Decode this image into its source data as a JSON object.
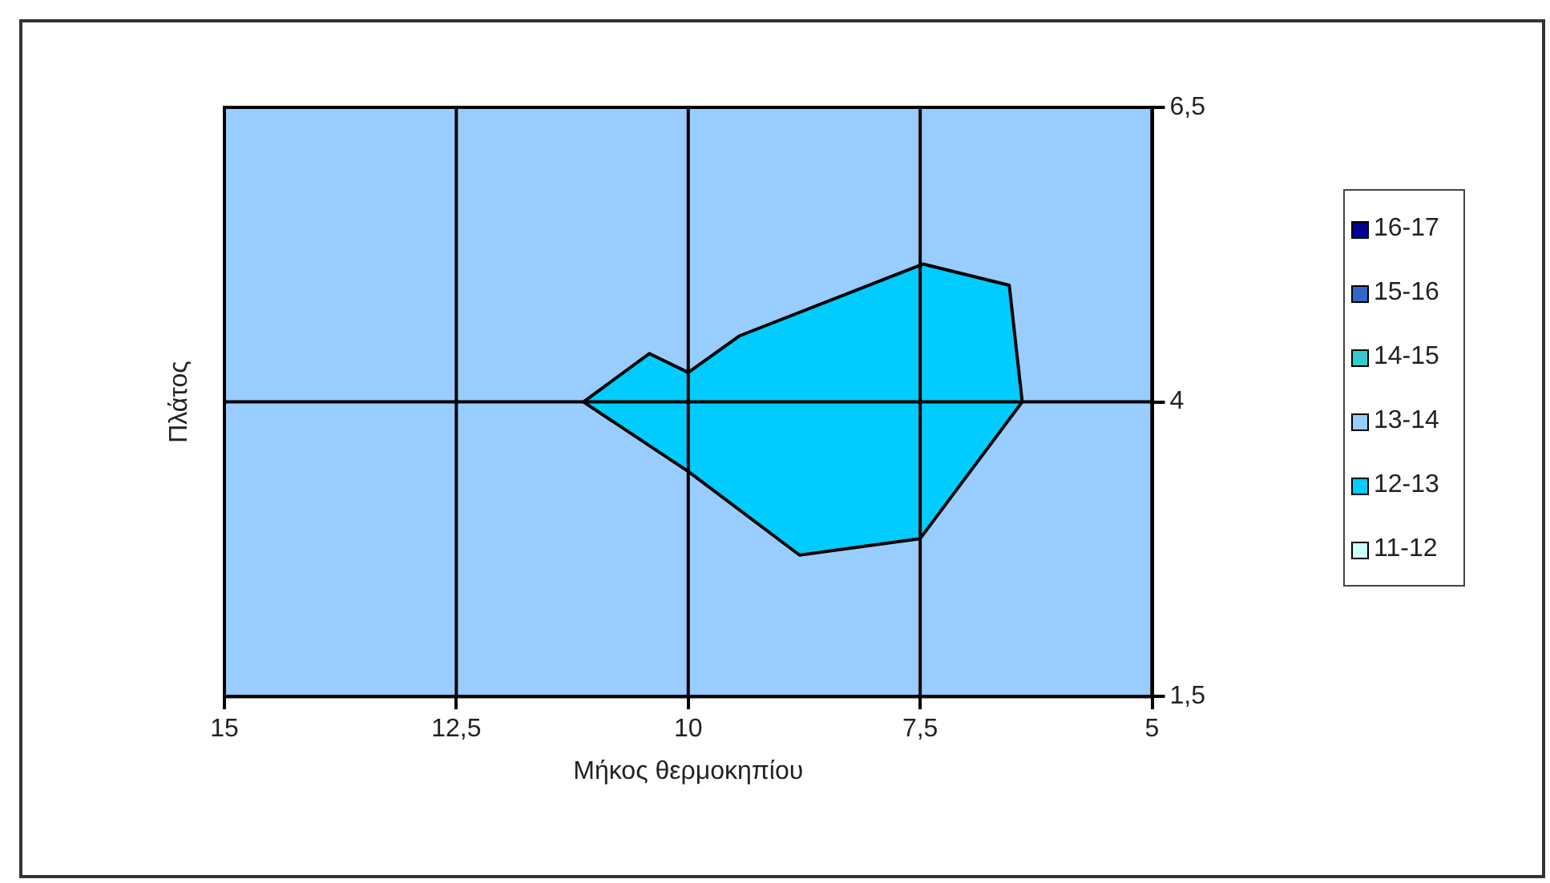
{
  "chart_data": {
    "type": "area",
    "xlabel": "Μήκος θερμοκηπίου",
    "ylabel": "Πλάτος",
    "xlim": [
      15,
      5
    ],
    "xticks": [
      15,
      {
        "value": 12.5,
        "label": "12,5"
      },
      10,
      {
        "value": 7.5,
        "label": "7,5"
      },
      5
    ],
    "ylim": [
      1.5,
      6.5
    ],
    "yticks": [
      {
        "value": 1.5,
        "label": "1,5"
      },
      4,
      {
        "value": 6.5,
        "label": "6,5"
      }
    ],
    "grid": true,
    "legend": "right",
    "bands": [
      {
        "axis": "y",
        "from": 1.5,
        "to": 6.5,
        "color": "#99ccff"
      }
    ],
    "series": [
      {
        "name": "16-17",
        "color": "#000099"
      },
      {
        "name": "15-16",
        "color": "#3366cc"
      },
      {
        "name": "14-15",
        "color": "#33cccc"
      },
      {
        "name": "13-14",
        "color": "#99ccff"
      },
      {
        "name": "12-13",
        "color": "#00ccff",
        "x": [
          11.13,
          10.42,
          10.0,
          9.45,
          7.47,
          6.54,
          6.4,
          7.5,
          8.8,
          10.0
        ],
        "values": [
          4.0,
          4.41,
          4.25,
          4.56,
          5.17,
          4.99,
          4.0,
          2.84,
          2.7,
          3.41
        ]
      },
      {
        "name": "11-12",
        "color": "#ccffff"
      }
    ]
  }
}
